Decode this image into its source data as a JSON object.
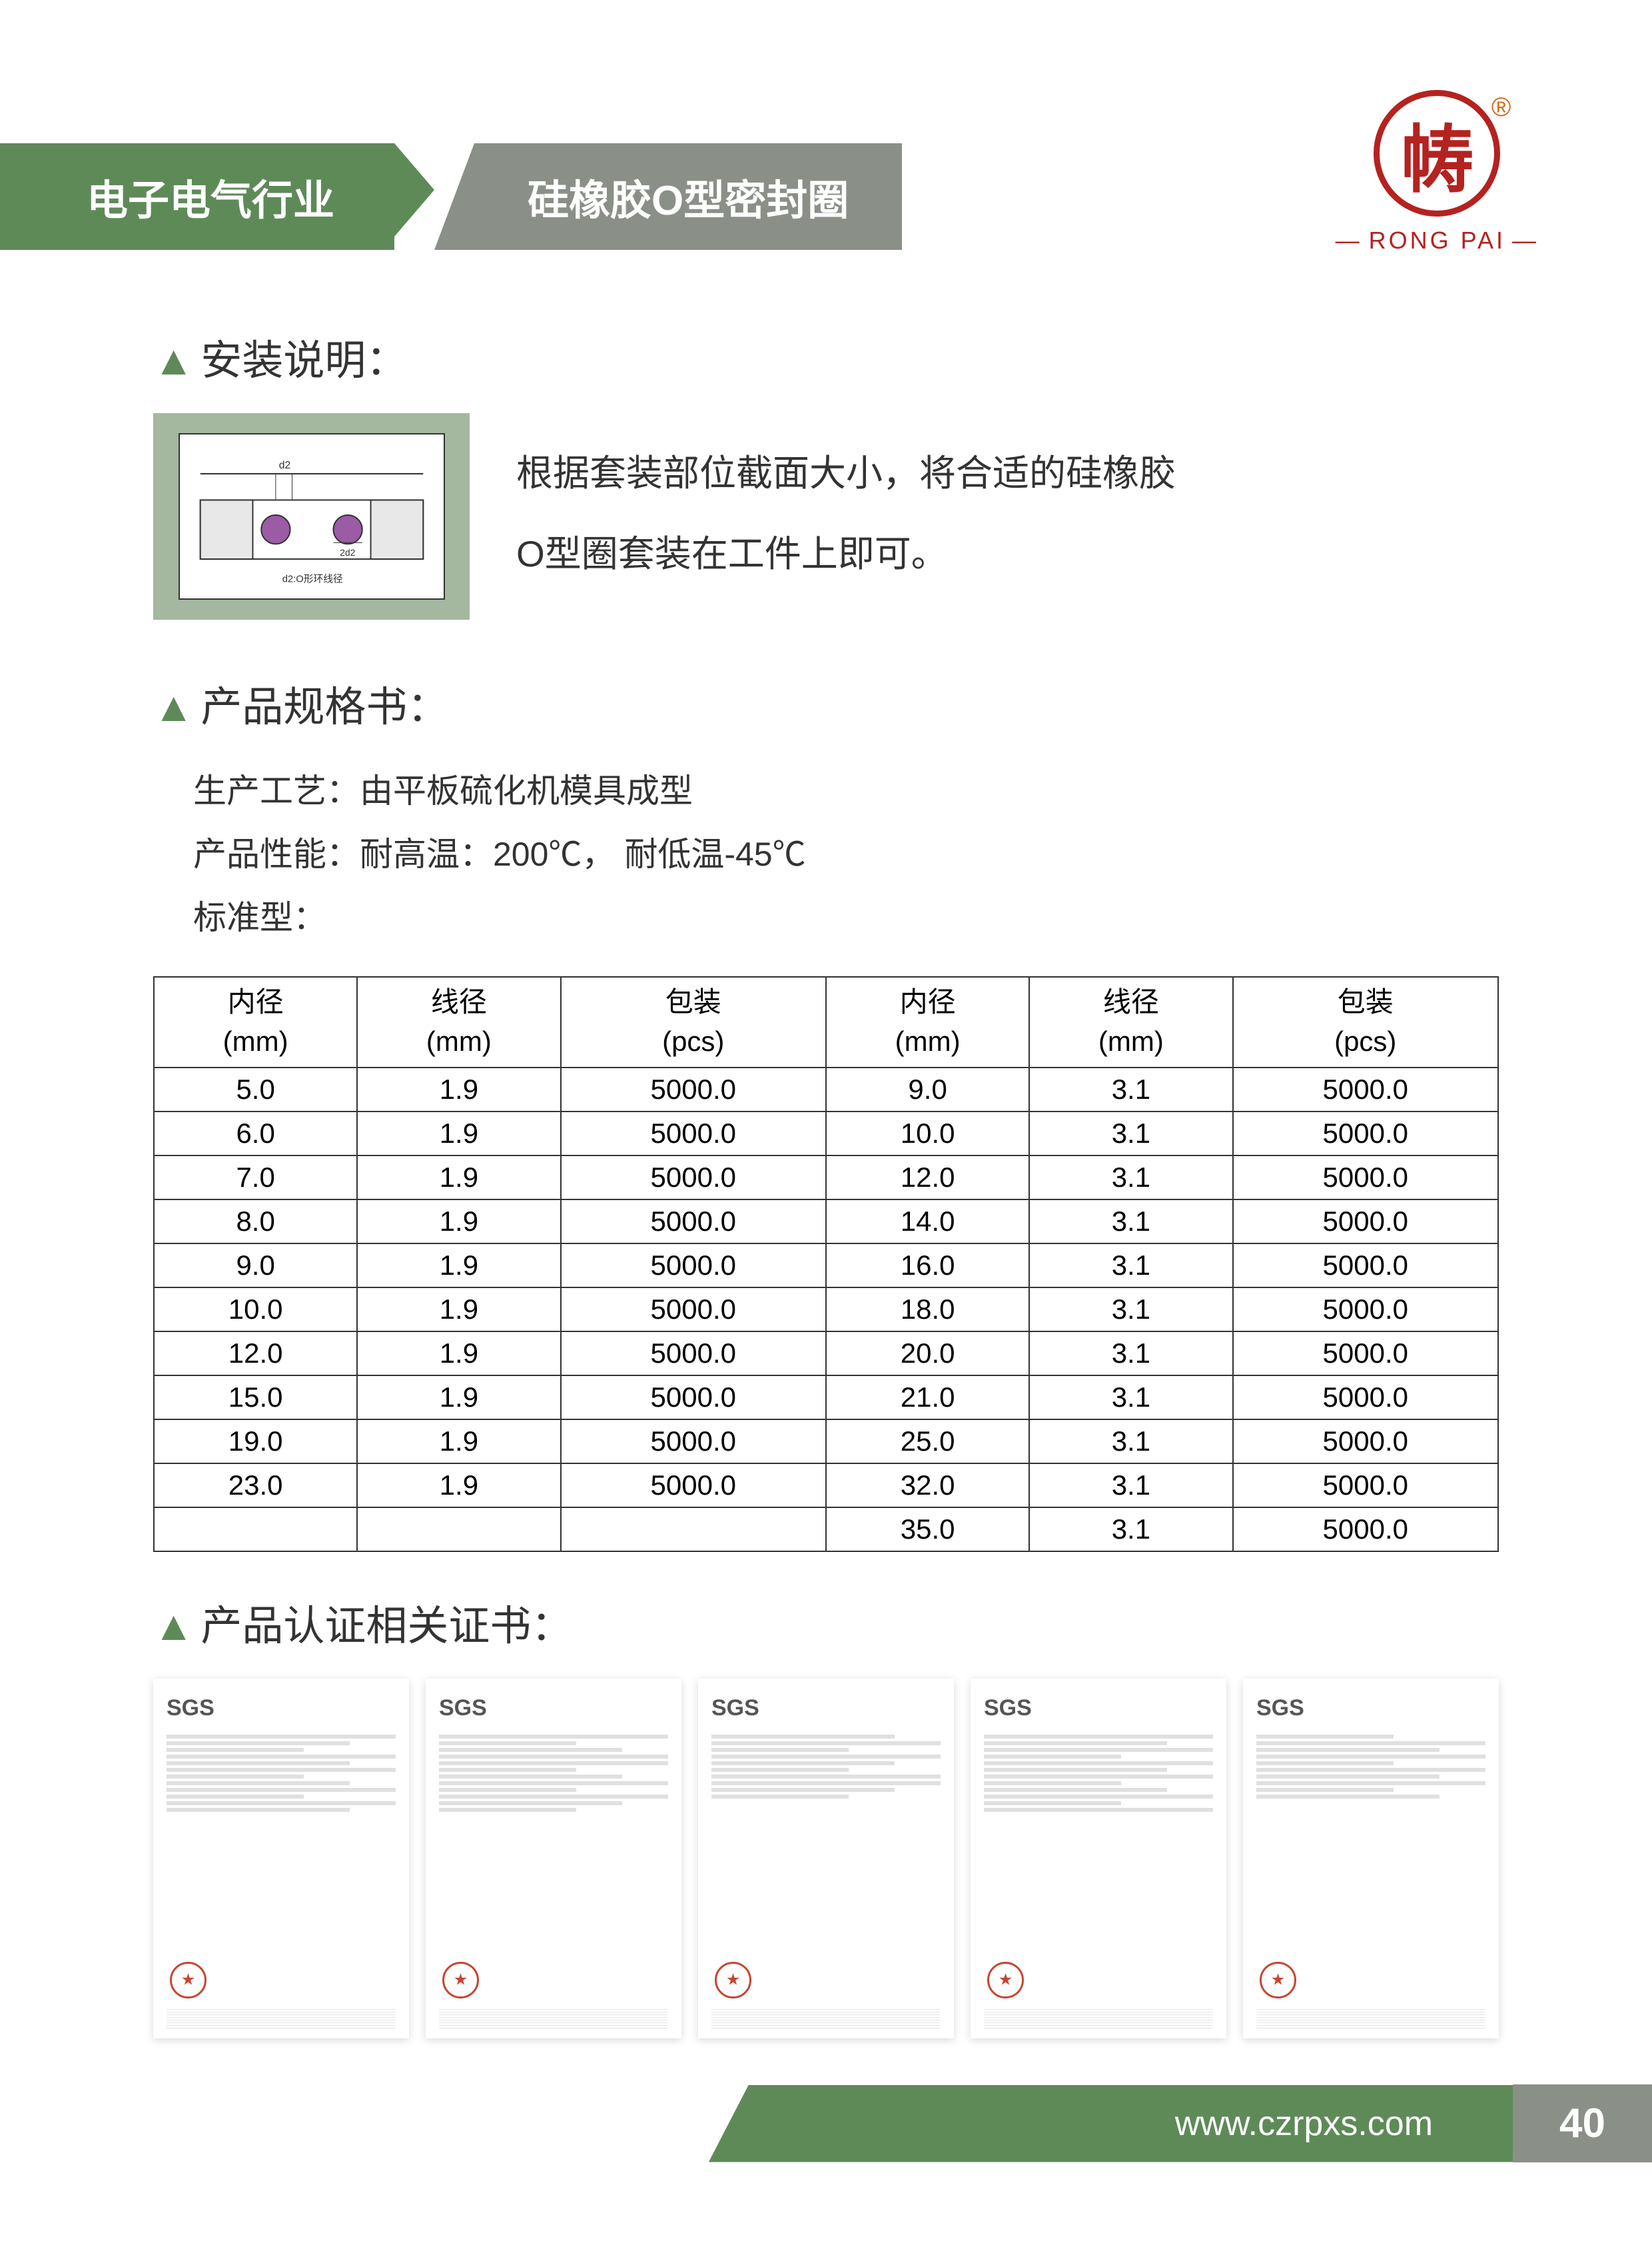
{
  "header": {
    "tab1": "电子电气行业",
    "tab2": "硅橡胶O型密封圈",
    "brand": "RONG  PAI"
  },
  "sections": {
    "install_title": "安装说明：",
    "install_text1": "根据套装部位截面大小，将合适的硅橡胶",
    "install_text2": "O型圈套装在工件上即可。",
    "diagram_label1": "d2",
    "diagram_label2": "2d2",
    "diagram_caption": "d2:O形环线径",
    "spec_title": "产品规格书：",
    "spec_line1": "生产工艺：由平板硫化机模具成型",
    "spec_line2": "产品性能：耐高温：200℃， 耐低温-45℃",
    "spec_line3": "标准型：",
    "cert_title": "产品认证相关证书："
  },
  "table": {
    "h1_a": "内径",
    "h1_b": "(mm)",
    "h2_a": "线径",
    "h2_b": "(mm)",
    "h3_a": "包装",
    "h3_b": "(pcs)",
    "h4_a": "内径",
    "h4_b": "(mm)",
    "h5_a": "线径",
    "h5_b": "(mm)",
    "h6_a": "包装",
    "h6_b": "(pcs)",
    "rows": [
      [
        "5.0",
        "1.9",
        "5000.0",
        "9.0",
        "3.1",
        "5000.0"
      ],
      [
        "6.0",
        "1.9",
        "5000.0",
        "10.0",
        "3.1",
        "5000.0"
      ],
      [
        "7.0",
        "1.9",
        "5000.0",
        "12.0",
        "3.1",
        "5000.0"
      ],
      [
        "8.0",
        "1.9",
        "5000.0",
        "14.0",
        "3.1",
        "5000.0"
      ],
      [
        "9.0",
        "1.9",
        "5000.0",
        "16.0",
        "3.1",
        "5000.0"
      ],
      [
        "10.0",
        "1.9",
        "5000.0",
        "18.0",
        "3.1",
        "5000.0"
      ],
      [
        "12.0",
        "1.9",
        "5000.0",
        "20.0",
        "3.1",
        "5000.0"
      ],
      [
        "15.0",
        "1.9",
        "5000.0",
        "21.0",
        "3.1",
        "5000.0"
      ],
      [
        "19.0",
        "1.9",
        "5000.0",
        "25.0",
        "3.1",
        "5000.0"
      ],
      [
        "23.0",
        "1.9",
        "5000.0",
        "32.0",
        "3.1",
        "5000.0"
      ],
      [
        "",
        "",
        "",
        "35.0",
        "3.1",
        "5000.0"
      ]
    ]
  },
  "cert": {
    "sgs": "SGS"
  },
  "footer": {
    "url": "www.czrpxs.com",
    "page": "40"
  },
  "colors": {
    "green": "#5e8a58",
    "gray": "#8a9087",
    "red": "#b5221f"
  }
}
